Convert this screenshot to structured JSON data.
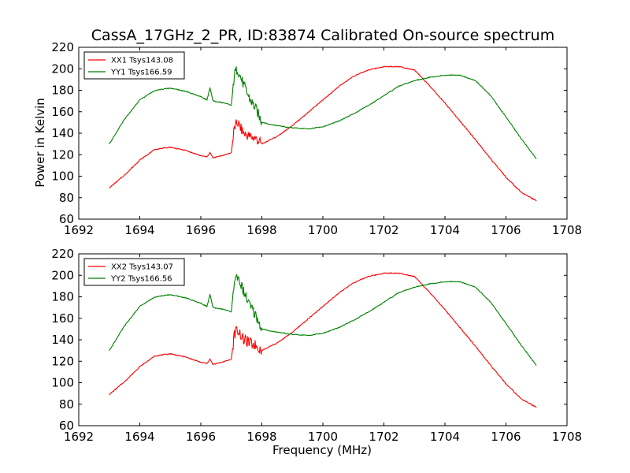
{
  "title": "CassA_17GHz_2_PR, ID:83874 Calibrated On-source spectrum",
  "chart_data": [
    {
      "type": "line",
      "ylabel": "Power in Kelvin",
      "xlabel": "",
      "xlim": [
        1692,
        1708
      ],
      "ylim": [
        60,
        220
      ],
      "xticks": [
        "1692",
        "1694",
        "1696",
        "1698",
        "1700",
        "1702",
        "1704",
        "1706",
        "1708"
      ],
      "yticks": [
        "60",
        "80",
        "100",
        "120",
        "140",
        "160",
        "180",
        "200",
        "220"
      ],
      "legend_position": "top-left",
      "series": [
        {
          "name": "XX1 Tsys143.08",
          "color": "#ff0000",
          "x": [
            1693.0,
            1693.5,
            1694.0,
            1694.5,
            1695.0,
            1695.5,
            1696.0,
            1696.2,
            1696.3,
            1696.4,
            1696.8,
            1697.0,
            1697.1,
            1697.2,
            1697.4,
            1697.6,
            1697.8,
            1698.0,
            1698.5,
            1699.0,
            1699.5,
            1700.0,
            1700.5,
            1701.0,
            1701.5,
            1702.0,
            1702.5,
            1703.0,
            1703.5,
            1704.0,
            1704.5,
            1705.0,
            1705.5,
            1706.0,
            1706.5,
            1707.0
          ],
          "y": [
            89,
            101,
            115,
            125,
            127,
            124,
            119,
            118,
            122,
            117,
            120,
            122,
            145,
            150,
            140,
            137,
            135,
            130,
            137,
            147,
            159,
            171,
            183,
            193,
            199,
            202,
            202,
            199,
            184,
            168,
            151,
            134,
            116,
            99,
            85,
            77
          ]
        },
        {
          "name": "YY1 Tsys166.59",
          "color": "#008000",
          "x": [
            1693.0,
            1693.5,
            1694.0,
            1694.5,
            1695.0,
            1695.5,
            1696.0,
            1696.2,
            1696.3,
            1696.4,
            1696.8,
            1697.0,
            1697.1,
            1697.2,
            1697.4,
            1697.6,
            1697.8,
            1698.0,
            1698.5,
            1699.0,
            1699.5,
            1700.0,
            1700.5,
            1701.0,
            1701.5,
            1702.0,
            1702.5,
            1703.0,
            1703.5,
            1704.0,
            1704.5,
            1705.0,
            1705.5,
            1706.0,
            1706.5,
            1707.0
          ],
          "y": [
            130,
            153,
            171,
            180,
            182,
            179,
            174,
            171,
            182,
            170,
            168,
            166,
            195,
            200,
            185,
            172,
            163,
            150,
            147,
            145,
            144,
            146,
            151,
            158,
            166,
            175,
            184,
            189,
            192,
            194,
            194,
            189,
            175,
            155,
            135,
            116
          ]
        }
      ]
    },
    {
      "type": "line",
      "ylabel": "",
      "xlabel": "Frequency (MHz)",
      "xlim": [
        1692,
        1708
      ],
      "ylim": [
        60,
        220
      ],
      "xticks": [
        "1692",
        "1694",
        "1696",
        "1698",
        "1700",
        "1702",
        "1704",
        "1706",
        "1708"
      ],
      "yticks": [
        "60",
        "80",
        "100",
        "120",
        "140",
        "160",
        "180",
        "200",
        "220"
      ],
      "legend_position": "top-left",
      "series": [
        {
          "name": "XX2 Tsys143.07",
          "color": "#ff0000",
          "x": [
            1693.0,
            1693.5,
            1694.0,
            1694.5,
            1695.0,
            1695.5,
            1696.0,
            1696.2,
            1696.3,
            1696.4,
            1696.8,
            1697.0,
            1697.1,
            1697.2,
            1697.4,
            1697.6,
            1697.8,
            1698.0,
            1698.5,
            1699.0,
            1699.5,
            1700.0,
            1700.5,
            1701.0,
            1701.5,
            1702.0,
            1702.5,
            1703.0,
            1703.5,
            1704.0,
            1704.5,
            1705.0,
            1705.5,
            1706.0,
            1706.5,
            1707.0
          ],
          "y": [
            89,
            101,
            115,
            125,
            127,
            124,
            119,
            118,
            122,
            117,
            120,
            122,
            145,
            150,
            140,
            137,
            135,
            130,
            137,
            147,
            159,
            171,
            183,
            193,
            199,
            202,
            202,
            199,
            184,
            168,
            151,
            134,
            116,
            99,
            85,
            77
          ]
        },
        {
          "name": "YY2 Tsys166.56",
          "color": "#008000",
          "x": [
            1693.0,
            1693.5,
            1694.0,
            1694.5,
            1695.0,
            1695.5,
            1696.0,
            1696.2,
            1696.3,
            1696.4,
            1696.8,
            1697.0,
            1697.1,
            1697.2,
            1697.4,
            1697.6,
            1697.8,
            1698.0,
            1698.5,
            1699.0,
            1699.5,
            1700.0,
            1700.5,
            1701.0,
            1701.5,
            1702.0,
            1702.5,
            1703.0,
            1703.5,
            1704.0,
            1704.5,
            1705.0,
            1705.5,
            1706.0,
            1706.5,
            1707.0
          ],
          "y": [
            130,
            153,
            171,
            180,
            182,
            179,
            174,
            171,
            182,
            170,
            168,
            166,
            195,
            200,
            185,
            172,
            163,
            150,
            147,
            145,
            144,
            146,
            151,
            158,
            166,
            175,
            184,
            189,
            192,
            194,
            194,
            189,
            175,
            155,
            135,
            116
          ]
        }
      ]
    }
  ]
}
